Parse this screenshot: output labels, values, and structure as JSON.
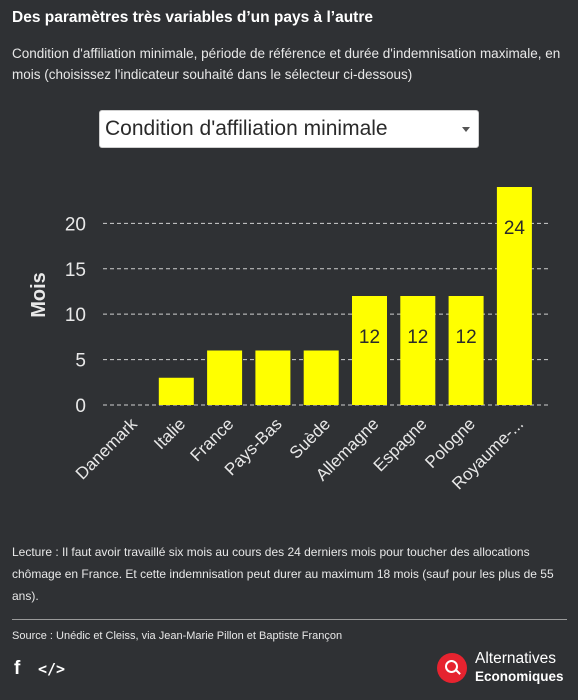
{
  "header": {
    "title": "Des paramètres très variables d’un pays à l’autre",
    "subtitle": "Condition d'affiliation minimale, période de référence et durée d'indemnisation maximale, en mois (choisissez l'indicateur souhaité dans le sélecteur ci-dessous)"
  },
  "selector": {
    "value": "Condition d'affiliation minimale"
  },
  "chart_data": {
    "type": "bar",
    "categories": [
      "Danemark",
      "Italie",
      "France",
      "Pays-Bas",
      "Suède",
      "Allemagne",
      "Espagne",
      "Pologne",
      "Royaume-..."
    ],
    "values": [
      0,
      3,
      6,
      6,
      6,
      12,
      12,
      12,
      24
    ],
    "data_labels": [
      "",
      "",
      "",
      "",
      "",
      "12",
      "12",
      "12",
      "24"
    ],
    "ylabel": "Mois",
    "xlabel": "",
    "ylim": [
      0,
      24
    ],
    "yticks": [
      0,
      5,
      10,
      15,
      20
    ],
    "grid": true,
    "bar_color": "#ffff00"
  },
  "footer": {
    "note": "Lecture : Il faut avoir travaillé six mois au cours des 24 derniers mois pour toucher des allocations chômage en France. Et cette indemnisation peut durer au maximum 18 mois (sauf pour les plus de 55 ans).",
    "source": "Source : Unédic et Cleiss, via Jean-Marie Pillon et Baptiste Françon",
    "share_icon": "f",
    "embed_icon": "</>"
  },
  "brand": {
    "name": "Alternatives",
    "sub": "Economiques",
    "accent": "#e6232f"
  }
}
